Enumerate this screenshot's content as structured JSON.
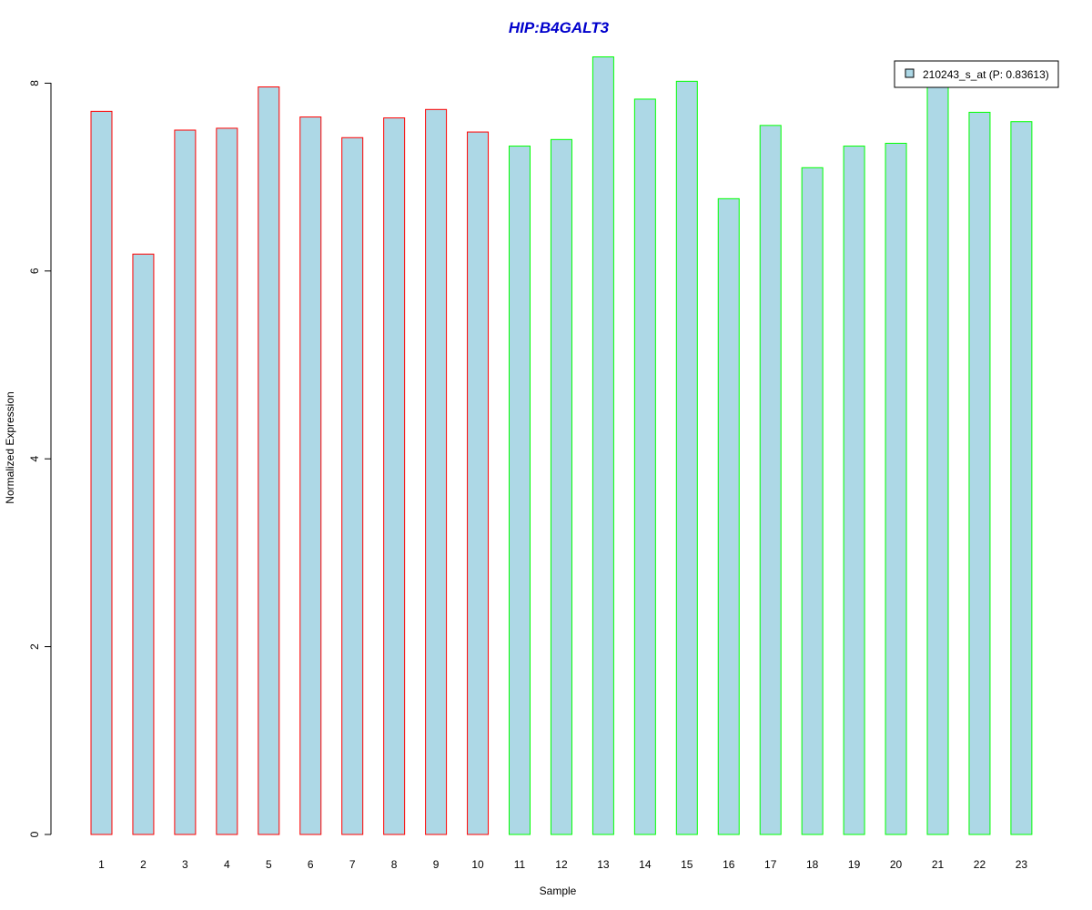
{
  "chart_data": {
    "type": "bar",
    "title": "HIP:B4GALT3",
    "title_color": "#0000CC",
    "xlabel": "Sample",
    "ylabel": "Normalized Expression",
    "ylim": [
      0,
      8.3
    ],
    "yticks": [
      "0",
      "2",
      "4",
      "6",
      "8"
    ],
    "grid": false,
    "legend_position": "top-right",
    "fill_color": "#ADD8E6",
    "categories": [
      "1",
      "2",
      "3",
      "4",
      "5",
      "6",
      "7",
      "8",
      "9",
      "10",
      "11",
      "12",
      "13",
      "14",
      "15",
      "16",
      "17",
      "18",
      "19",
      "20",
      "21",
      "22",
      "23"
    ],
    "series": [
      {
        "name": "210243_s_at (P: 0.83613)",
        "values": [
          7.7,
          6.18,
          7.5,
          7.52,
          7.96,
          7.64,
          7.42,
          7.63,
          7.72,
          7.48,
          7.33,
          7.4,
          8.28,
          7.83,
          8.02,
          6.77,
          7.55,
          7.1,
          7.33,
          7.36,
          7.97,
          7.69,
          7.59
        ]
      }
    ],
    "groups": [
      {
        "samples": [
          "1",
          "2",
          "3",
          "4",
          "5",
          "6",
          "7",
          "8",
          "9",
          "10"
        ],
        "border_color": "#FF0000"
      },
      {
        "samples": [
          "11",
          "12",
          "13",
          "14",
          "15",
          "16",
          "17",
          "18",
          "19",
          "20",
          "21",
          "22",
          "23"
        ],
        "border_color": "#00FF00"
      }
    ]
  }
}
